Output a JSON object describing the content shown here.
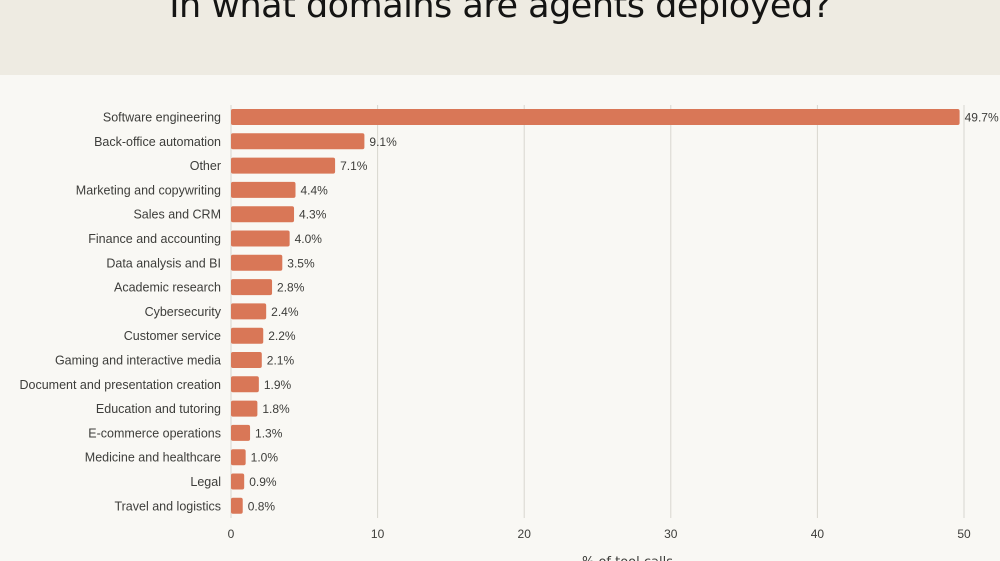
{
  "colors": {
    "bar": "#d97757",
    "grid": "#d8d6cf",
    "header_bg": "#eeebe2",
    "page_bg": "#f9f8f4",
    "text": "#3d3d3a"
  },
  "chart_data": {
    "type": "bar",
    "orientation": "horizontal",
    "title": "In what domains are agents deployed?",
    "xlabel": "% of tool calls",
    "ylabel": "",
    "xlim": [
      0,
      50
    ],
    "x_ticks": [
      0,
      10,
      20,
      30,
      40,
      50
    ],
    "grid": true,
    "categories": [
      "Software engineering",
      "Back-office automation",
      "Other",
      "Marketing and copywriting",
      "Sales and CRM",
      "Finance and accounting",
      "Data analysis and BI",
      "Academic research",
      "Cybersecurity",
      "Customer service",
      "Gaming and interactive media",
      "Document and presentation creation",
      "Education and tutoring",
      "E-commerce operations",
      "Medicine and healthcare",
      "Legal",
      "Travel and logistics"
    ],
    "values": [
      49.7,
      9.1,
      7.1,
      4.4,
      4.3,
      4.0,
      3.5,
      2.8,
      2.4,
      2.2,
      2.1,
      1.9,
      1.8,
      1.3,
      1.0,
      0.9,
      0.8
    ],
    "value_labels": [
      "49.7%",
      "9.1%",
      "7.1%",
      "4.4%",
      "4.3%",
      "4.0%",
      "3.5%",
      "2.8%",
      "2.4%",
      "2.2%",
      "2.1%",
      "1.9%",
      "1.8%",
      "1.3%",
      "1.0%",
      "0.9%",
      "0.8%"
    ]
  }
}
